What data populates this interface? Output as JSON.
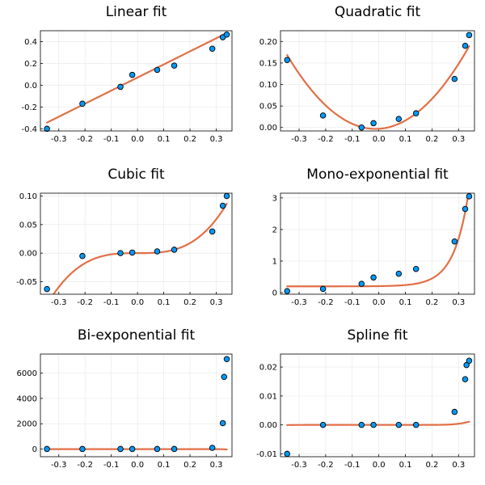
{
  "colors": {
    "fit_line": "#e26f46",
    "points": "#009af9",
    "grid": "#e6e6e6"
  },
  "chart_data": [
    {
      "type": "scatter",
      "title": "Linear fit",
      "model": "linear",
      "x": [
        -0.345,
        -0.21,
        -0.065,
        -0.02,
        0.075,
        0.14,
        0.285,
        0.325,
        0.34
      ],
      "y": [
        -0.4,
        -0.17,
        -0.015,
        0.095,
        0.14,
        0.18,
        0.335,
        0.44,
        0.465
      ],
      "fit": {
        "kind": "poly",
        "coef": [
          0.0705,
          1.2
        ]
      },
      "xlim": [
        -0.37,
        0.36
      ],
      "ylim": [
        -0.42,
        0.5
      ],
      "xticks": [
        -0.3,
        -0.2,
        -0.1,
        0.0,
        0.1,
        0.2,
        0.3
      ],
      "xtick_labels": [
        "-0.3",
        "-0.2",
        "-0.1",
        "0.0",
        "0.1",
        "0.2",
        "0.3"
      ],
      "yticks": [
        -0.4,
        -0.2,
        0.0,
        0.2,
        0.4
      ],
      "ytick_labels": [
        "-0.4",
        "-0.2",
        "0.0",
        "0.2",
        "0.4"
      ],
      "grid": true,
      "legend": "none"
    },
    {
      "type": "scatter",
      "title": "Quadratic fit",
      "model": "quadratic",
      "x": [
        -0.345,
        -0.21,
        -0.065,
        -0.02,
        0.075,
        0.14,
        0.285,
        0.325,
        0.34
      ],
      "y": [
        0.157,
        0.028,
        0.0,
        0.01,
        0.02,
        0.033,
        0.113,
        0.19,
        0.215
      ],
      "fit": {
        "kind": "poly",
        "coef": [
          -0.003,
          0.038,
          1.55
        ]
      },
      "xlim": [
        -0.37,
        0.36
      ],
      "ylim": [
        -0.008,
        0.225
      ],
      "xticks": [
        -0.3,
        -0.2,
        -0.1,
        0.0,
        0.1,
        0.2,
        0.3
      ],
      "xtick_labels": [
        "-0.3",
        "-0.2",
        "-0.1",
        "0.0",
        "0.1",
        "0.2",
        "0.3"
      ],
      "yticks": [
        0.0,
        0.05,
        0.1,
        0.15,
        0.2
      ],
      "ytick_labels": [
        "0.00",
        "0.05",
        "0.10",
        "0.15",
        "0.20"
      ],
      "grid": true,
      "legend": "none"
    },
    {
      "type": "scatter",
      "title": "Cubic fit",
      "model": "cubic",
      "x": [
        -0.345,
        -0.21,
        -0.065,
        -0.02,
        0.075,
        0.14,
        0.285,
        0.325,
        0.34
      ],
      "y": [
        -0.063,
        -0.005,
        0.0,
        0.001,
        0.003,
        0.006,
        0.038,
        0.083,
        0.1
      ],
      "fit": {
        "kind": "poly",
        "coef": [
          0.0,
          0.0,
          0.0,
          2.2
        ]
      },
      "xlim": [
        -0.37,
        0.36
      ],
      "ylim": [
        -0.072,
        0.105
      ],
      "xticks": [
        -0.3,
        -0.2,
        -0.1,
        0.0,
        0.1,
        0.2,
        0.3
      ],
      "xtick_labels": [
        "-0.3",
        "-0.2",
        "-0.1",
        "0.0",
        "0.1",
        "0.2",
        "0.3"
      ],
      "yticks": [
        -0.05,
        0.0,
        0.05,
        0.1
      ],
      "ytick_labels": [
        "-0.05",
        "0.00",
        "0.05",
        "0.10"
      ],
      "grid": true,
      "legend": "none"
    },
    {
      "type": "scatter",
      "title": "Mono-exponential fit",
      "model": "mono-exponential",
      "x": [
        -0.345,
        -0.21,
        -0.065,
        -0.02,
        0.075,
        0.14,
        0.285,
        0.325,
        0.34
      ],
      "y": [
        0.05,
        0.12,
        0.28,
        0.48,
        0.6,
        0.75,
        1.62,
        2.65,
        3.05
      ],
      "fit": {
        "kind": "exp",
        "terms": [
          [
            0.2,
            0.0
          ],
          [
            0.0068,
            18.0
          ]
        ]
      },
      "xlim": [
        -0.37,
        0.36
      ],
      "ylim": [
        -0.05,
        3.15
      ],
      "xticks": [
        -0.3,
        -0.2,
        -0.1,
        0.0,
        0.1,
        0.2,
        0.3
      ],
      "xtick_labels": [
        "-0.3",
        "-0.2",
        "-0.1",
        "0.0",
        "0.1",
        "0.2",
        "0.3"
      ],
      "yticks": [
        0,
        1,
        2,
        3
      ],
      "ytick_labels": [
        "0",
        "1",
        "2",
        "3"
      ],
      "grid": true,
      "legend": "none"
    },
    {
      "type": "scatter",
      "title": "Bi-exponential fit",
      "model": "bi-exponential",
      "x": [
        -0.345,
        -0.21,
        -0.065,
        -0.02,
        0.075,
        0.14,
        0.285,
        0.325,
        0.33,
        0.34
      ],
      "y": [
        10,
        10,
        10,
        10,
        10,
        10,
        100,
        2050,
        5700,
        7100
      ],
      "fit": {
        "kind": "exp",
        "terms": [
          [
            0.0,
            0.0
          ],
          [
            2e-18,
            130.0
          ],
          [
            -3.2e-12,
            90.0
          ]
        ]
      },
      "xlim": [
        -0.37,
        0.36
      ],
      "ylim": [
        -600,
        7500
      ],
      "xticks": [
        -0.3,
        -0.2,
        -0.1,
        0.0,
        0.1,
        0.2,
        0.3
      ],
      "xtick_labels": [
        "-0.3",
        "-0.2",
        "-0.1",
        "0.0",
        "0.1",
        "0.2",
        "0.3"
      ],
      "yticks": [
        0,
        2000,
        4000,
        6000
      ],
      "ytick_labels": [
        "0",
        "2000",
        "4000",
        "6000"
      ],
      "grid": true,
      "legend": "none"
    },
    {
      "type": "scatter",
      "title": "Spline fit",
      "model": "spline",
      "x": [
        -0.345,
        -0.21,
        -0.065,
        -0.02,
        0.075,
        0.14,
        0.285,
        0.325,
        0.33,
        0.34
      ],
      "y": [
        -0.01,
        0.0,
        0.0,
        0.0,
        0.0,
        0.0,
        0.0045,
        0.0158,
        0.0207,
        0.0222
      ],
      "fit": {
        "kind": "piecewise",
        "knots": [
          -0.21,
          0.16
        ],
        "left_coef": 1.6e-09,
        "left_pow": 4,
        "right_coef": 1.05e-06,
        "right_pow": 4
      },
      "xlim": [
        -0.37,
        0.36
      ],
      "ylim": [
        -0.011,
        0.0245
      ],
      "xticks": [
        -0.3,
        -0.2,
        -0.1,
        0.0,
        0.1,
        0.2,
        0.3
      ],
      "xtick_labels": [
        "-0.3",
        "-0.2",
        "-0.1",
        "0.0",
        "0.1",
        "0.2",
        "0.3"
      ],
      "yticks": [
        -0.01,
        0.0,
        0.01,
        0.02
      ],
      "ytick_labels": [
        "-0.01",
        "0.00",
        "0.01",
        "0.02"
      ],
      "grid": true,
      "legend": "none"
    }
  ]
}
